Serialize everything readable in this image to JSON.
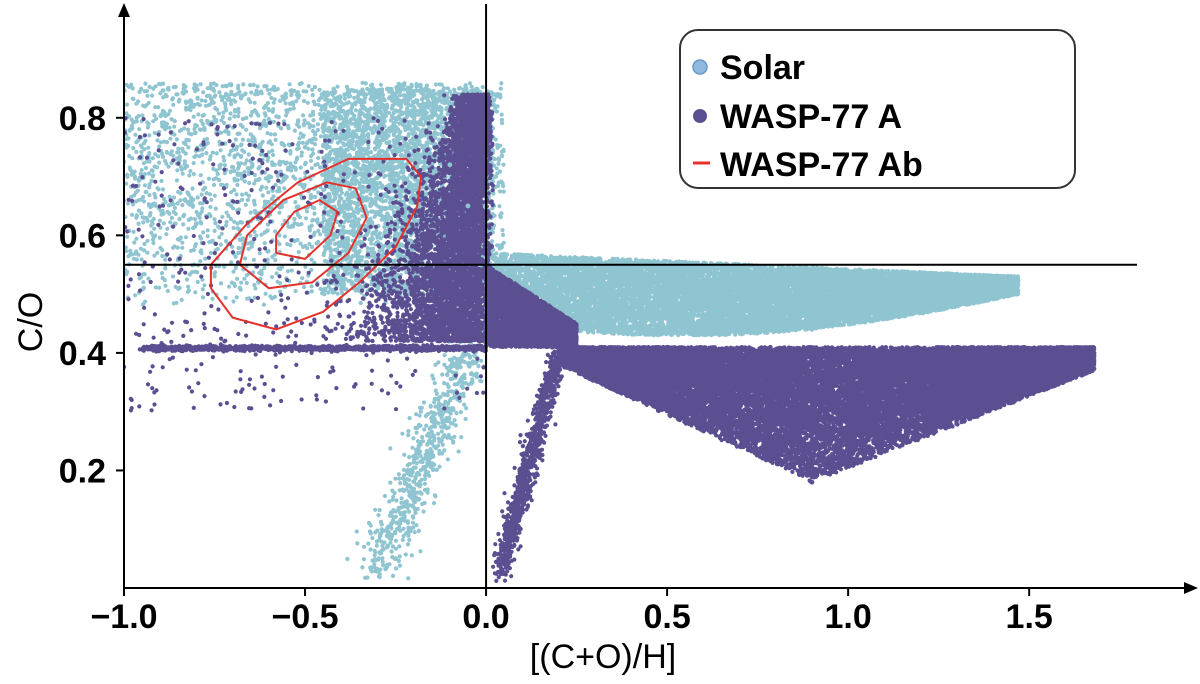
{
  "chart_data": {
    "type": "scatter",
    "title": "",
    "xlabel": "[(C+O)/H]",
    "ylabel": "C/O",
    "xlim": [
      -1.0,
      1.9
    ],
    "ylim": [
      0.0,
      0.98
    ],
    "x_ticks": [
      {
        "value": -1.0,
        "label": "−1.0"
      },
      {
        "value": -0.5,
        "label": "−0.5"
      },
      {
        "value": 0.0,
        "label": "0.0"
      },
      {
        "value": 0.5,
        "label": "0.5"
      },
      {
        "value": 1.0,
        "label": "1.0"
      },
      {
        "value": 1.5,
        "label": "1.5"
      }
    ],
    "y_ticks": [
      {
        "value": 0.2,
        "label": "0.2"
      },
      {
        "value": 0.4,
        "label": "0.4"
      },
      {
        "value": 0.6,
        "label": "0.6"
      },
      {
        "value": 0.8,
        "label": "0.8"
      }
    ],
    "reference_lines": {
      "vertical_x": 0.0,
      "horizontal_y": 0.55
    },
    "legend": {
      "placement": "top-right",
      "entries": [
        {
          "label": "Solar",
          "marker": "circle",
          "color": "#8fc4d1"
        },
        {
          "label": "WASP-77 A",
          "marker": "circle",
          "color": "#5b4f92"
        },
        {
          "label": "WASP-77 Ab",
          "marker": "line",
          "color": "#e4312b"
        }
      ]
    },
    "series": [
      {
        "name": "Solar",
        "color": "#8fc4d1",
        "region_description": "broad upper-left cloud plus a band right of x=0 between C/O ~0.42 and ~0.56",
        "points": [
          {
            "x": -0.6,
            "y": 0.7
          },
          {
            "x": -0.5,
            "y": 0.75
          },
          {
            "x": -0.4,
            "y": 0.8
          },
          {
            "x": -0.3,
            "y": 0.84
          },
          {
            "x": -0.2,
            "y": 0.78
          },
          {
            "x": -0.1,
            "y": 0.72
          },
          {
            "x": -0.05,
            "y": 0.65
          },
          {
            "x": -0.8,
            "y": 0.62
          },
          {
            "x": 0.1,
            "y": 0.56
          },
          {
            "x": 0.3,
            "y": 0.53
          },
          {
            "x": 0.5,
            "y": 0.5
          },
          {
            "x": 0.7,
            "y": 0.49
          },
          {
            "x": 0.9,
            "y": 0.49
          },
          {
            "x": 1.1,
            "y": 0.5
          },
          {
            "x": 1.3,
            "y": 0.52
          },
          {
            "x": 1.45,
            "y": 0.53
          },
          {
            "x": 0.6,
            "y": 0.45
          },
          {
            "x": 0.9,
            "y": 0.44
          },
          {
            "x": -0.1,
            "y": 0.3
          },
          {
            "x": -0.2,
            "y": 0.15
          },
          {
            "x": -0.25,
            "y": 0.05
          }
        ]
      },
      {
        "name": "WASP-77 A",
        "color": "#5b4f92",
        "region_description": "dense column near x=0, band right of x=0 between C/O ~0.2 and ~0.41, flat line at C/O ~0.41 for x<0",
        "points": [
          {
            "x": -0.1,
            "y": 0.65
          },
          {
            "x": 0.0,
            "y": 0.55
          },
          {
            "x": 0.1,
            "y": 0.45
          },
          {
            "x": 0.3,
            "y": 0.38
          },
          {
            "x": 0.5,
            "y": 0.34
          },
          {
            "x": 0.7,
            "y": 0.3
          },
          {
            "x": 0.9,
            "y": 0.25
          },
          {
            "x": 0.9,
            "y": 0.18
          },
          {
            "x": 1.1,
            "y": 0.3
          },
          {
            "x": 1.3,
            "y": 0.35
          },
          {
            "x": 1.5,
            "y": 0.38
          },
          {
            "x": 1.65,
            "y": 0.39
          },
          {
            "x": 0.1,
            "y": 0.2
          },
          {
            "x": 0.05,
            "y": 0.05
          },
          {
            "x": -0.5,
            "y": 0.41
          },
          {
            "x": -0.9,
            "y": 0.41
          },
          {
            "x": -0.3,
            "y": 0.5
          }
        ]
      }
    ],
    "contours": {
      "name": "WASP-77 Ab",
      "color": "#e4312b",
      "levels": [
        {
          "level": "outer",
          "points": [
            [
              -0.76,
              0.51
            ],
            [
              -0.7,
              0.46
            ],
            [
              -0.58,
              0.44
            ],
            [
              -0.45,
              0.47
            ],
            [
              -0.35,
              0.52
            ],
            [
              -0.25,
              0.58
            ],
            [
              -0.19,
              0.65
            ],
            [
              -0.18,
              0.7
            ],
            [
              -0.22,
              0.73
            ],
            [
              -0.38,
              0.73
            ],
            [
              -0.52,
              0.69
            ],
            [
              -0.66,
              0.62
            ],
            [
              -0.76,
              0.55
            ],
            [
              -0.76,
              0.51
            ]
          ]
        },
        {
          "level": "middle",
          "points": [
            [
              -0.68,
              0.55
            ],
            [
              -0.6,
              0.51
            ],
            [
              -0.48,
              0.52
            ],
            [
              -0.38,
              0.57
            ],
            [
              -0.33,
              0.63
            ],
            [
              -0.36,
              0.68
            ],
            [
              -0.44,
              0.69
            ],
            [
              -0.56,
              0.66
            ],
            [
              -0.66,
              0.6
            ],
            [
              -0.68,
              0.55
            ]
          ]
        },
        {
          "level": "inner",
          "points": [
            [
              -0.58,
              0.57
            ],
            [
              -0.5,
              0.56
            ],
            [
              -0.43,
              0.6
            ],
            [
              -0.41,
              0.64
            ],
            [
              -0.46,
              0.66
            ],
            [
              -0.53,
              0.64
            ],
            [
              -0.58,
              0.6
            ],
            [
              -0.58,
              0.57
            ]
          ]
        }
      ]
    }
  }
}
